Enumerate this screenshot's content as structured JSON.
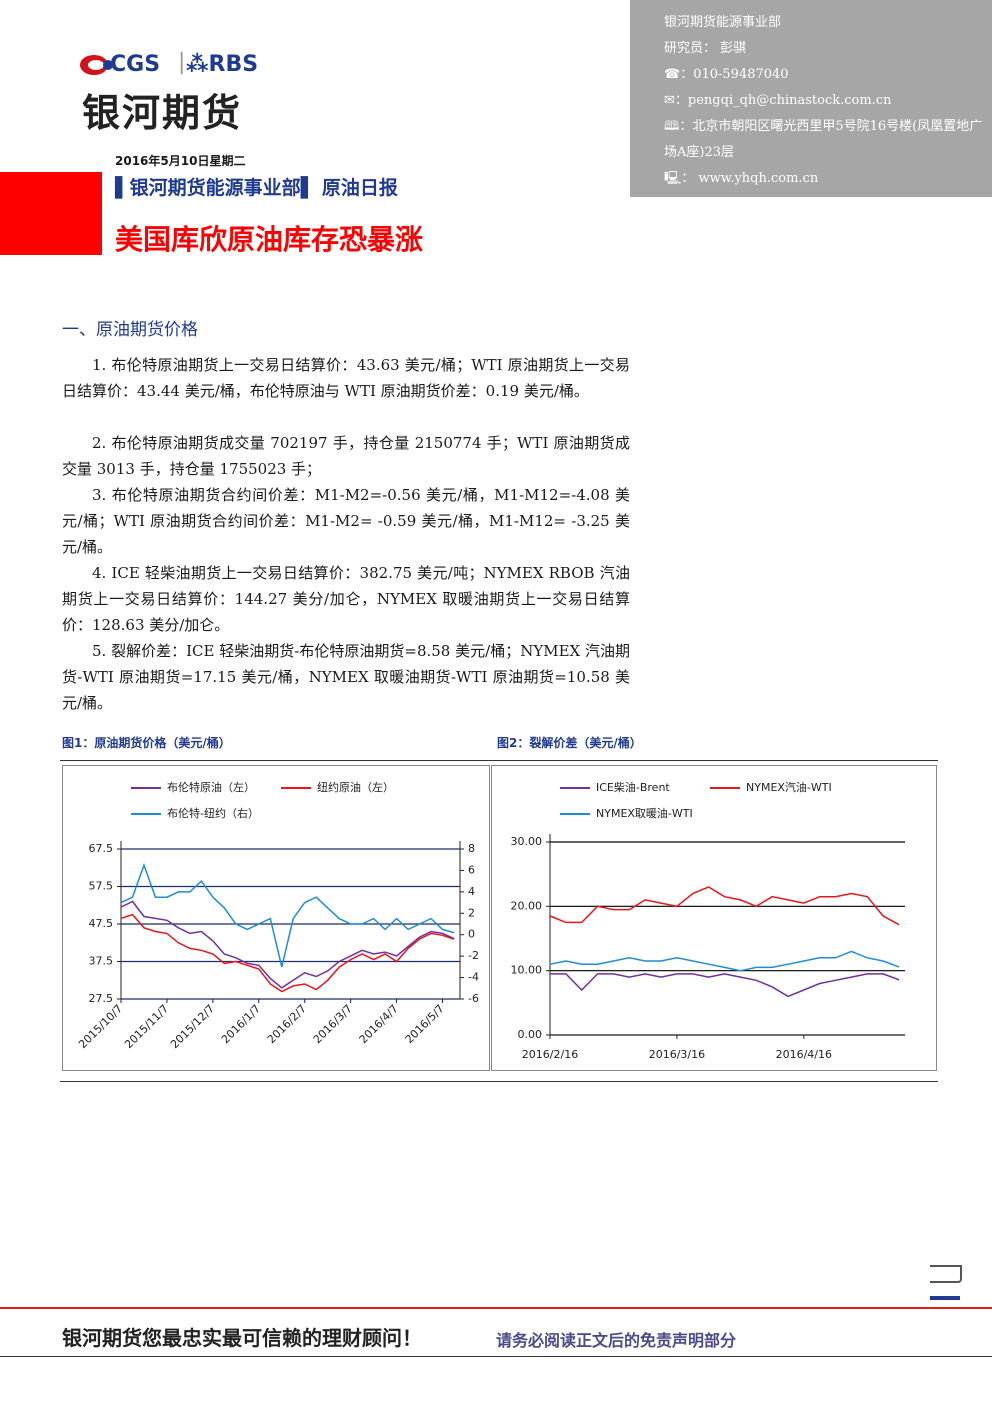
{
  "header": {
    "logo_left": "CGS",
    "logo_right": "RBS",
    "brand": "银河期货",
    "date": "2016年5月10日星期二",
    "department_tag": "银河期货能源事业部",
    "report_name": "原油日报",
    "title": "美国库欣原油库存恐暴涨"
  },
  "contact": {
    "department": "银河期货能源事业部",
    "researcher": "研究员：  彭骐",
    "phone": "：010-59487040",
    "email": "：pengqi_qh@chinastock.com.cn",
    "address": "：北京市朝阳区曙光西里甲5号院16号楼(凤凰置地广场A座)23层",
    "website": "：   www.yhqh.com.cn"
  },
  "section": {
    "heading": "一、原油期货价格",
    "paragraphs": [
      "1. 布伦特原油期货上一交易日结算价：43.63 美元/桶；WTI 原油期货上一交易日结算价：43.44 美元/桶，布伦特原油与 WTI 原油期货价差：0.19 美元/桶。",
      "2. 布伦特原油期货成交量 702197 手，持仓量 2150774 手；WTI 原油期货成交量 3013 手，持仓量 1755023 手；",
      "3. 布伦特原油期货合约间价差：M1-M2=-0.56 美元/桶，M1-M12=-4.08 美元/桶；WTI 原油期货合约间价差：M1-M2= -0.59 美元/桶，M1-M12= -3.25 美元/桶。",
      "4. ICE 轻柴油期货上一交易日结算价：382.75 美元/吨；NYMEX RBOB 汽油期货上一交易日结算价：144.27 美分/加仑，NYMEX 取暖油期货上一交易日结算价：128.63 美分/加仑。",
      "5. 裂解价差：ICE 轻柴油期货-布伦特原油期货=8.58 美元/桶；NYMEX 汽油期货-WTI 原油期货=17.15 美元/桶，NYMEX 取暖油期货-WTI 原油期货=10.58 美元/桶。"
    ]
  },
  "figures": {
    "caption_1": "图1：原油期货价格（美元/桶）",
    "caption_2": "图2：裂解价差（美元/桶）"
  },
  "chart_data": [
    {
      "type": "line",
      "categories": [
        "2015/10/7",
        null,
        null,
        null,
        "2015/11/7",
        null,
        null,
        null,
        "2015/12/7",
        null,
        null,
        null,
        "2016/1/7",
        null,
        null,
        null,
        "2016/2/7",
        null,
        null,
        null,
        "2016/3/7",
        null,
        null,
        null,
        "2016/4/7",
        null,
        null,
        null,
        "2016/5/7",
        null
      ],
      "series": [
        {
          "name": "布伦特原油（左）",
          "color": "#7030a0",
          "values": [
            52.0,
            53.5,
            49.5,
            49.0,
            48.5,
            46.5,
            45.0,
            45.5,
            43.0,
            39.5,
            38.5,
            37.0,
            36.5,
            33.0,
            30.5,
            32.5,
            34.5,
            33.5,
            35.0,
            37.5,
            39.0,
            40.5,
            39.5,
            40.0,
            39.0,
            41.5,
            44.0,
            45.5,
            45.0,
            43.63
          ]
        },
        {
          "name": "纽约原油（左）",
          "color": "#e8161b",
          "values": [
            49.0,
            50.0,
            46.5,
            45.5,
            45.0,
            42.5,
            41.0,
            40.5,
            39.5,
            37.0,
            37.5,
            36.5,
            35.5,
            31.5,
            29.5,
            31.0,
            31.5,
            30.0,
            32.5,
            36.0,
            38.0,
            39.5,
            38.0,
            39.5,
            37.5,
            41.0,
            43.5,
            45.0,
            44.5,
            43.44
          ]
        },
        {
          "name": "布伦特-纽约（右）",
          "color": "#1f8dd6",
          "axis": "y2",
          "values": [
            3.0,
            3.5,
            6.5,
            3.5,
            3.5,
            4.0,
            4.0,
            5.0,
            3.5,
            2.5,
            1.0,
            0.5,
            1.0,
            1.5,
            -3.0,
            1.5,
            3.0,
            3.5,
            2.5,
            1.5,
            1.0,
            1.0,
            1.5,
            0.5,
            1.5,
            0.5,
            1.0,
            1.5,
            0.5,
            0.19
          ]
        }
      ],
      "ylim": [
        27.5,
        67.5
      ],
      "yticks": [
        27.5,
        37.5,
        47.5,
        57.5,
        67.5
      ],
      "y2lim": [
        -6,
        8
      ],
      "y2ticks": [
        -6,
        -4,
        -2,
        0,
        2,
        4,
        6,
        8
      ],
      "grid": true,
      "grid_color": "#1f2f6b"
    },
    {
      "type": "line",
      "categories": [
        "2016/2/16",
        null,
        null,
        null,
        null,
        null,
        null,
        null,
        "2016/3/16",
        null,
        null,
        null,
        null,
        null,
        null,
        null,
        "2016/4/16",
        null,
        null,
        null,
        null,
        null,
        null
      ],
      "series": [
        {
          "name": "ICE柴油-Brent",
          "color": "#7030a0",
          "values": [
            9.5,
            9.5,
            7.0,
            9.5,
            9.5,
            9.0,
            9.5,
            9.0,
            9.5,
            9.5,
            9.0,
            9.5,
            9.0,
            8.5,
            7.5,
            6.0,
            7.0,
            8.0,
            8.5,
            9.0,
            9.5,
            9.5,
            8.58
          ]
        },
        {
          "name": "NYMEX汽油-WTI",
          "color": "#e8161b",
          "values": [
            18.5,
            17.5,
            17.5,
            20.0,
            19.5,
            19.5,
            21.0,
            20.5,
            20.0,
            22.0,
            23.0,
            21.5,
            21.0,
            20.0,
            21.5,
            21.0,
            20.5,
            21.5,
            21.5,
            22.0,
            21.5,
            18.5,
            17.15
          ]
        },
        {
          "name": "NYMEX取暖油-WTI",
          "color": "#1f8dd6",
          "values": [
            11.0,
            11.5,
            11.0,
            11.0,
            11.5,
            12.0,
            11.5,
            11.5,
            12.0,
            11.5,
            11.0,
            10.5,
            10.0,
            10.5,
            10.5,
            11.0,
            11.5,
            12.0,
            12.0,
            13.0,
            12.0,
            11.5,
            10.58
          ]
        }
      ],
      "ylim": [
        0,
        30
      ],
      "yticks": [
        {
          "value": 0,
          "label": "0.00"
        },
        {
          "value": 10,
          "label": "10.00"
        },
        {
          "value": 20,
          "label": "20.00"
        },
        {
          "value": 30,
          "label": "30.00"
        }
      ],
      "grid": true,
      "grid_color": "#000000"
    }
  ],
  "footer": {
    "slogan": "银河期货您最忠实最可信赖的理财顾问！",
    "disclaimer": "请务必阅读正文后的免责声明部分"
  }
}
